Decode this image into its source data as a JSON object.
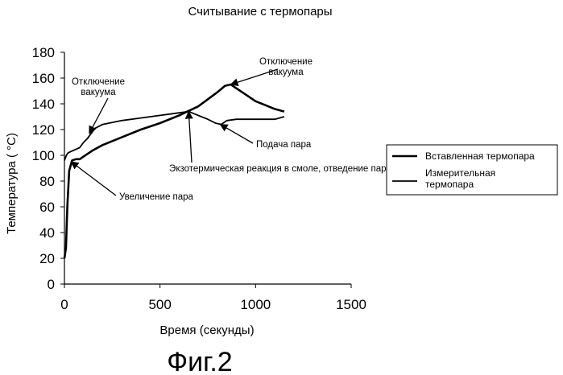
{
  "figure_label": "Фиг.2",
  "chart_data": {
    "type": "line",
    "title": "Считывание с термопары",
    "xlabel": "Время (секунды)",
    "ylabel": "Температура ( °C)",
    "xlim": [
      0,
      1500
    ],
    "ylim": [
      0,
      180
    ],
    "xticks": [
      0,
      500,
      1000,
      1500
    ],
    "yticks": [
      0,
      20,
      40,
      60,
      80,
      100,
      120,
      140,
      160,
      180
    ],
    "grid": false,
    "legend_position": "right",
    "series": [
      {
        "name": "Вставленная термопара",
        "color": "#000000",
        "width": 2.6,
        "points": [
          [
            0,
            20
          ],
          [
            8,
            28
          ],
          [
            15,
            60
          ],
          [
            25,
            88
          ],
          [
            40,
            96
          ],
          [
            60,
            97
          ],
          [
            80,
            97
          ],
          [
            100,
            99
          ],
          [
            150,
            104
          ],
          [
            200,
            108
          ],
          [
            300,
            114
          ],
          [
            400,
            120
          ],
          [
            500,
            125
          ],
          [
            600,
            131
          ],
          [
            700,
            138
          ],
          [
            800,
            149
          ],
          [
            840,
            154
          ],
          [
            870,
            155
          ],
          [
            900,
            152
          ],
          [
            950,
            147
          ],
          [
            1000,
            142
          ],
          [
            1050,
            139
          ],
          [
            1100,
            136
          ],
          [
            1150,
            134
          ]
        ]
      },
      {
        "name": "Измерительная термопара",
        "color": "#000000",
        "width": 1.8,
        "points": [
          [
            0,
            96
          ],
          [
            10,
            100
          ],
          [
            20,
            102
          ],
          [
            50,
            104
          ],
          [
            80,
            106
          ],
          [
            100,
            110
          ],
          [
            120,
            113
          ],
          [
            140,
            117
          ],
          [
            160,
            121
          ],
          [
            200,
            124
          ],
          [
            300,
            127
          ],
          [
            400,
            129
          ],
          [
            500,
            131
          ],
          [
            600,
            133
          ],
          [
            650,
            134
          ],
          [
            700,
            131
          ],
          [
            750,
            128
          ],
          [
            790,
            125
          ],
          [
            820,
            124
          ],
          [
            850,
            127
          ],
          [
            900,
            128
          ],
          [
            1000,
            128
          ],
          [
            1100,
            128
          ],
          [
            1150,
            130
          ]
        ]
      }
    ],
    "annotations": [
      {
        "text": "Отключение вакуума",
        "lines": [
          "Отключение",
          "вакуума"
        ],
        "target": [
          870,
          155
        ]
      },
      {
        "text": "Отключение вакуума",
        "lines": [
          "Отключение",
          "вакуума"
        ],
        "target": [
          130,
          117
        ]
      },
      {
        "text": "Экзотермическая реакция в смоле, отведение пара",
        "lines": [
          "Экзотермическая реакция в смоле, отведение пара"
        ],
        "target": [
          650,
          134
        ]
      },
      {
        "text": "Подача пара",
        "lines": [
          "Подача пара"
        ],
        "target": [
          815,
          124
        ]
      },
      {
        "text": "Увеличение пара",
        "lines": [
          "Увеличение пара"
        ],
        "target": [
          35,
          95
        ]
      }
    ]
  }
}
